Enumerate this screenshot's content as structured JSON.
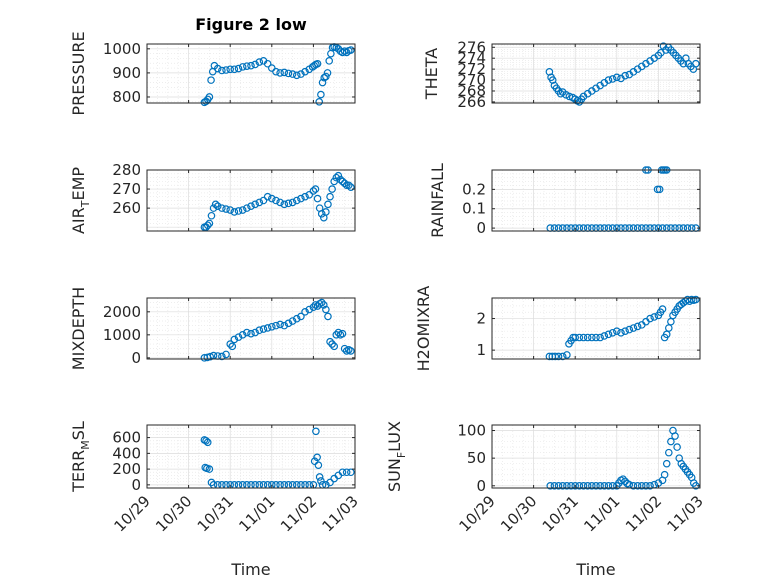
{
  "figure": {
    "title": "Figure 2 low",
    "marker_color": "#0072bd"
  },
  "chart_data": [
    {
      "type": "scatter",
      "ylabel": "PRESSURE",
      "ylabel_base": "PRESSURE",
      "ylabel_sub": "",
      "xlabel": "",
      "xlim": [
        0,
        5
      ],
      "ylim": [
        775,
        1020
      ],
      "yticks": [
        800,
        900,
        1000
      ],
      "yticklabels": [
        "800",
        "900",
        "1000"
      ],
      "xtick_labels_visible": false,
      "grid": true,
      "x": [
        1.38,
        1.42,
        1.46,
        1.5,
        1.54,
        1.58,
        1.62,
        1.7,
        1.8,
        1.9,
        2.0,
        2.1,
        2.2,
        2.3,
        2.4,
        2.5,
        2.6,
        2.7,
        2.8,
        2.9,
        3.0,
        3.1,
        3.2,
        3.3,
        3.4,
        3.5,
        3.6,
        3.7,
        3.8,
        3.9,
        3.98,
        4.02,
        4.06,
        4.1,
        4.14,
        4.18,
        4.22,
        4.26,
        4.3,
        4.34,
        4.38,
        4.42,
        4.46,
        4.5,
        4.55,
        4.6,
        4.65,
        4.7,
        4.75,
        4.8,
        4.85,
        4.9
      ],
      "y": [
        778,
        782,
        790,
        800,
        870,
        905,
        930,
        918,
        910,
        912,
        915,
        915,
        918,
        925,
        928,
        930,
        935,
        945,
        950,
        938,
        920,
        905,
        900,
        902,
        898,
        895,
        890,
        895,
        905,
        915,
        925,
        930,
        935,
        938,
        780,
        810,
        860,
        880,
        885,
        900,
        950,
        980,
        1005,
        1008,
        1005,
        1000,
        990,
        985,
        990,
        985,
        992,
        995
      ]
    },
    {
      "type": "scatter",
      "ylabel": "THETA",
      "ylabel_base": "THETA",
      "ylabel_sub": "",
      "xlabel": "",
      "xlim": [
        0,
        5
      ],
      "ylim": [
        265.8,
        276.6
      ],
      "yticks": [
        266,
        268,
        270,
        272,
        274,
        276
      ],
      "yticklabels": [
        "266",
        "268",
        "270",
        "272",
        "274",
        "276"
      ],
      "xtick_labels_visible": false,
      "grid": true,
      "x": [
        1.38,
        1.42,
        1.46,
        1.5,
        1.55,
        1.6,
        1.65,
        1.7,
        1.78,
        1.86,
        1.94,
        2.0,
        2.05,
        2.1,
        2.15,
        2.2,
        2.3,
        2.4,
        2.5,
        2.6,
        2.7,
        2.8,
        2.9,
        3.0,
        3.1,
        3.2,
        3.3,
        3.4,
        3.5,
        3.6,
        3.7,
        3.8,
        3.9,
        4.0,
        4.06,
        4.12,
        4.18,
        4.24,
        4.3,
        4.36,
        4.42,
        4.48,
        4.54,
        4.6,
        4.66,
        4.72,
        4.78,
        4.84,
        4.9
      ],
      "y": [
        271.5,
        270.5,
        270,
        269,
        268.5,
        268,
        267.5,
        267.8,
        267.3,
        267,
        266.8,
        266.5,
        266.2,
        266,
        266.5,
        267,
        267.5,
        268,
        268.5,
        269,
        269.5,
        270,
        270.2,
        270.5,
        270.3,
        270.8,
        271,
        271.5,
        272,
        272.5,
        273,
        273.5,
        274,
        274.5,
        275,
        276.2,
        275.5,
        276,
        275.5,
        275,
        274.5,
        274,
        273.5,
        273,
        274,
        273,
        272.5,
        272,
        273
      ]
    },
    {
      "type": "scatter",
      "ylabel": "AIR_TEMP",
      "ylabel_base": "AIR",
      "ylabel_sub": "T",
      "ylabel_rest": "EMP",
      "xlabel": "",
      "xlim": [
        0,
        5
      ],
      "ylim": [
        248,
        280
      ],
      "yticks": [
        260,
        270,
        280
      ],
      "yticklabels": [
        "260",
        "270",
        "280"
      ],
      "xtick_labels_visible": false,
      "grid": true,
      "x": [
        1.38,
        1.42,
        1.46,
        1.5,
        1.55,
        1.6,
        1.65,
        1.7,
        1.8,
        1.9,
        2.0,
        2.1,
        2.2,
        2.3,
        2.4,
        2.5,
        2.6,
        2.7,
        2.8,
        2.9,
        3.0,
        3.1,
        3.2,
        3.3,
        3.4,
        3.5,
        3.6,
        3.7,
        3.8,
        3.9,
        4.0,
        4.05,
        4.1,
        4.15,
        4.2,
        4.25,
        4.3,
        4.35,
        4.4,
        4.45,
        4.5,
        4.55,
        4.6,
        4.65,
        4.7,
        4.75,
        4.8,
        4.85,
        4.9
      ],
      "y": [
        250,
        250,
        251,
        252,
        256,
        260,
        262,
        261,
        260,
        259.5,
        259,
        258,
        258.5,
        259,
        260,
        261,
        262,
        263,
        264,
        266,
        265,
        264,
        263,
        262,
        262.5,
        263,
        264,
        265,
        266,
        267,
        269,
        270,
        265,
        260,
        257,
        255,
        258,
        262,
        266,
        270,
        274,
        276,
        277,
        275,
        274,
        273,
        272,
        272,
        271
      ]
    },
    {
      "type": "scatter",
      "ylabel": "RAINFALL",
      "ylabel_base": "RAINFALL",
      "ylabel_sub": "",
      "xlabel": "",
      "xlim": [
        0,
        5
      ],
      "ylim": [
        -0.015,
        0.3
      ],
      "yticks": [
        0,
        0.1,
        0.2
      ],
      "yticklabels": [
        "0",
        "0.1",
        "0.2"
      ],
      "xtick_labels_visible": false,
      "grid": true,
      "x": [
        1.4,
        1.5,
        1.6,
        1.7,
        1.8,
        1.9,
        2.0,
        2.1,
        2.2,
        2.3,
        2.4,
        2.5,
        2.6,
        2.7,
        2.8,
        2.9,
        3.0,
        3.1,
        3.2,
        3.3,
        3.4,
        3.5,
        3.6,
        3.7,
        3.8,
        3.9,
        4.0,
        4.1,
        4.2,
        4.3,
        4.4,
        4.5,
        4.6,
        4.7,
        4.8,
        4.9,
        3.7,
        3.75,
        3.98,
        4.03,
        4.08,
        4.12,
        4.16,
        4.2
      ],
      "y": [
        0,
        0,
        0,
        0,
        0,
        0,
        0,
        0,
        0,
        0,
        0,
        0,
        0,
        0,
        0,
        0,
        0,
        0,
        0,
        0,
        0,
        0,
        0,
        0,
        0,
        0,
        0,
        0,
        0,
        0,
        0,
        0,
        0,
        0,
        0,
        0,
        0.3,
        0.3,
        0.2,
        0.2,
        0.3,
        0.3,
        0.3,
        0.3
      ]
    },
    {
      "type": "scatter",
      "ylabel": "MIXDEPTH",
      "ylabel_base": "MIXDEPTH",
      "ylabel_sub": "",
      "xlabel": "",
      "xlim": [
        0,
        5
      ],
      "ylim": [
        -50,
        2600
      ],
      "yticks": [
        0,
        1000,
        2000
      ],
      "yticklabels": [
        "0",
        "1000",
        "2000"
      ],
      "xtick_labels_visible": false,
      "grid": true,
      "x": [
        1.38,
        1.45,
        1.52,
        1.6,
        1.7,
        1.8,
        1.9,
        2.0,
        2.05,
        2.1,
        2.2,
        2.3,
        2.4,
        2.5,
        2.6,
        2.7,
        2.8,
        2.9,
        3.0,
        3.1,
        3.2,
        3.3,
        3.4,
        3.5,
        3.6,
        3.7,
        3.8,
        3.9,
        4.0,
        4.05,
        4.1,
        4.15,
        4.2,
        4.25,
        4.3,
        4.35,
        4.4,
        4.45,
        4.5,
        4.55,
        4.6,
        4.65,
        4.7,
        4.75,
        4.8,
        4.85,
        4.9
      ],
      "y": [
        0,
        20,
        50,
        100,
        80,
        60,
        150,
        600,
        500,
        800,
        900,
        1000,
        1100,
        1050,
        1100,
        1200,
        1250,
        1300,
        1350,
        1400,
        1450,
        1400,
        1500,
        1600,
        1700,
        1800,
        2000,
        2100,
        2200,
        2300,
        2250,
        2350,
        2400,
        2300,
        2100,
        1800,
        700,
        600,
        500,
        1000,
        1100,
        1000,
        1050,
        400,
        300,
        350,
        300
      ]
    },
    {
      "type": "scatter",
      "ylabel": "H2OMIXRA",
      "ylabel_base": "H2OMIXRA",
      "ylabel_sub": "",
      "xlabel": "",
      "xlim": [
        0,
        5
      ],
      "ylim": [
        0.72,
        2.65
      ],
      "yticks": [
        1,
        2
      ],
      "yticklabels": [
        "1",
        "2"
      ],
      "xtick_labels_visible": false,
      "grid": true,
      "x": [
        1.38,
        1.45,
        1.52,
        1.6,
        1.7,
        1.8,
        1.85,
        1.9,
        1.95,
        2.0,
        2.1,
        2.2,
        2.3,
        2.4,
        2.5,
        2.6,
        2.7,
        2.8,
        2.9,
        3.0,
        3.1,
        3.2,
        3.3,
        3.4,
        3.5,
        3.6,
        3.7,
        3.8,
        3.9,
        4.0,
        4.05,
        4.1,
        4.15,
        4.2,
        4.25,
        4.3,
        4.35,
        4.4,
        4.45,
        4.5,
        4.55,
        4.6,
        4.65,
        4.7,
        4.75,
        4.8,
        4.85,
        4.9
      ],
      "y": [
        0.8,
        0.8,
        0.8,
        0.8,
        0.8,
        0.85,
        1.2,
        1.3,
        1.4,
        1.4,
        1.4,
        1.4,
        1.4,
        1.4,
        1.4,
        1.4,
        1.45,
        1.5,
        1.55,
        1.6,
        1.55,
        1.6,
        1.65,
        1.7,
        1.75,
        1.8,
        1.9,
        2.0,
        2.05,
        2.1,
        2.2,
        2.3,
        1.4,
        1.5,
        1.7,
        1.9,
        2.1,
        2.2,
        2.3,
        2.4,
        2.45,
        2.5,
        2.55,
        2.6,
        2.55,
        2.6,
        2.58,
        2.6
      ]
    },
    {
      "type": "scatter",
      "ylabel": "TERR_MSL",
      "ylabel_base": "TERR",
      "ylabel_sub": "M",
      "ylabel_rest": "SL",
      "xlabel": "Time",
      "xlim": [
        0,
        5
      ],
      "ylim": [
        -40,
        760
      ],
      "yticks": [
        0,
        200,
        400,
        600
      ],
      "yticklabels": [
        "0",
        "200",
        "400",
        "600"
      ],
      "xticks": [
        0,
        1,
        2,
        3,
        4,
        5
      ],
      "xticklabels": [
        "10/29",
        "10/30",
        "10/31",
        "11/01",
        "11/02",
        "11/03"
      ],
      "xtick_labels_visible": true,
      "grid": true,
      "x": [
        1.38,
        1.42,
        1.46,
        1.4,
        1.44,
        1.5,
        1.55,
        1.6,
        1.7,
        1.8,
        1.9,
        2.0,
        2.1,
        2.2,
        2.3,
        2.4,
        2.5,
        2.6,
        2.7,
        2.8,
        2.9,
        3.0,
        3.1,
        3.2,
        3.3,
        3.4,
        3.5,
        3.6,
        3.7,
        3.8,
        3.9,
        4.0,
        4.03,
        4.06,
        4.09,
        4.12,
        4.15,
        4.18,
        4.22,
        4.3,
        4.4,
        4.5,
        4.6,
        4.7,
        4.8,
        4.9
      ],
      "y": [
        570,
        560,
        540,
        220,
        210,
        200,
        30,
        0,
        0,
        0,
        0,
        0,
        0,
        0,
        0,
        0,
        0,
        0,
        0,
        0,
        0,
        0,
        0,
        0,
        0,
        0,
        0,
        0,
        0,
        0,
        0,
        0,
        300,
        680,
        350,
        250,
        100,
        50,
        0,
        0,
        30,
        80,
        120,
        160,
        160,
        160
      ]
    },
    {
      "type": "scatter",
      "ylabel": "SUN_FLUX",
      "ylabel_base": "SUN",
      "ylabel_sub": "F",
      "ylabel_rest": "LUX",
      "xlabel": "Time",
      "xlim": [
        0,
        5
      ],
      "ylim": [
        -4,
        110
      ],
      "yticks": [
        0,
        50,
        100
      ],
      "yticklabels": [
        "0",
        "50",
        "100"
      ],
      "xticks": [
        0,
        1,
        2,
        3,
        4,
        5
      ],
      "xticklabels": [
        "10/29",
        "10/30",
        "10/31",
        "11/01",
        "11/02",
        "11/03"
      ],
      "xtick_labels_visible": true,
      "grid": true,
      "x": [
        1.4,
        1.5,
        1.6,
        1.7,
        1.8,
        1.9,
        2.0,
        2.1,
        2.2,
        2.3,
        2.4,
        2.5,
        2.6,
        2.7,
        2.8,
        2.9,
        3.0,
        3.05,
        3.1,
        3.15,
        3.2,
        3.25,
        3.3,
        3.4,
        3.5,
        3.6,
        3.7,
        3.8,
        3.9,
        4.0,
        4.1,
        4.15,
        4.2,
        4.25,
        4.3,
        4.35,
        4.4,
        4.45,
        4.5,
        4.55,
        4.6,
        4.65,
        4.7,
        4.75,
        4.8,
        4.85,
        4.9
      ],
      "y": [
        0,
        0,
        0,
        0,
        0,
        0,
        0,
        0,
        0,
        0,
        0,
        0,
        0,
        0,
        0,
        0,
        0,
        5,
        10,
        12,
        8,
        4,
        2,
        0,
        0,
        0,
        0,
        0,
        2,
        5,
        10,
        20,
        40,
        60,
        80,
        100,
        90,
        70,
        50,
        40,
        35,
        30,
        25,
        20,
        15,
        5,
        0
      ]
    }
  ]
}
